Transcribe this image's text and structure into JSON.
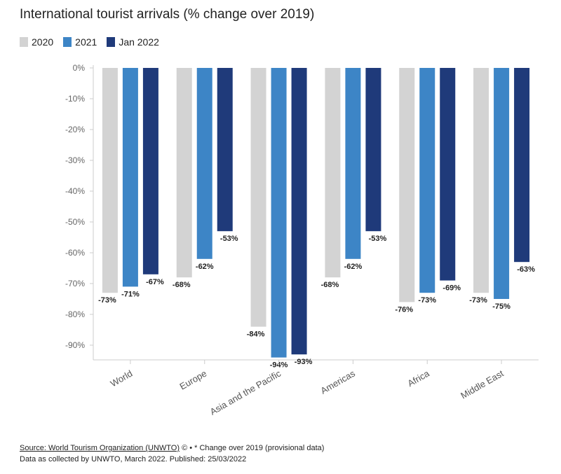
{
  "chart_data": {
    "type": "bar",
    "title": "International tourist arrivals (% change over 2019)",
    "categories": [
      "World",
      "Europe",
      "Asia and the Pacific",
      "Americas",
      "Africa",
      "Middle East"
    ],
    "series": [
      {
        "name": "2020",
        "color": "#d3d3d3",
        "values": [
          -73,
          -68,
          -84,
          -68,
          -76,
          -73
        ]
      },
      {
        "name": "2021",
        "color": "#3d85c6",
        "values": [
          -71,
          -62,
          -94,
          -62,
          -73,
          -75
        ]
      },
      {
        "name": "Jan 2022",
        "color": "#1f3a7a",
        "values": [
          -67,
          -53,
          -93,
          -53,
          -69,
          -63
        ]
      }
    ],
    "ylim": [
      -95,
      0
    ],
    "yticks": [
      0,
      -10,
      -20,
      -30,
      -40,
      -50,
      -60,
      -70,
      -80,
      -90
    ],
    "ytick_labels": [
      "0%",
      "-10%",
      "-20%",
      "-30%",
      "-40%",
      "-50%",
      "-60%",
      "-70%",
      "-80%",
      "-90%"
    ],
    "data_labels": [
      [
        "-73%",
        "-68%",
        "-84%",
        "-68%",
        "-76%",
        "-73%"
      ],
      [
        "-71%",
        "-62%",
        "-94%",
        "-62%",
        "-73%",
        "-75%"
      ],
      [
        "-67%",
        "-53%",
        "-93%",
        "-53%",
        "-69%",
        "-63%"
      ]
    ],
    "legend_placement": "top-left",
    "grid": false
  },
  "footer": {
    "source_link": "Source: World Tourism Organization (UNWTO)",
    "source_rest": " © • * Change over 2019 (provisional data)",
    "line2": "Data as collected by UNWTO, March 2022. Published: 25/03/2022"
  }
}
